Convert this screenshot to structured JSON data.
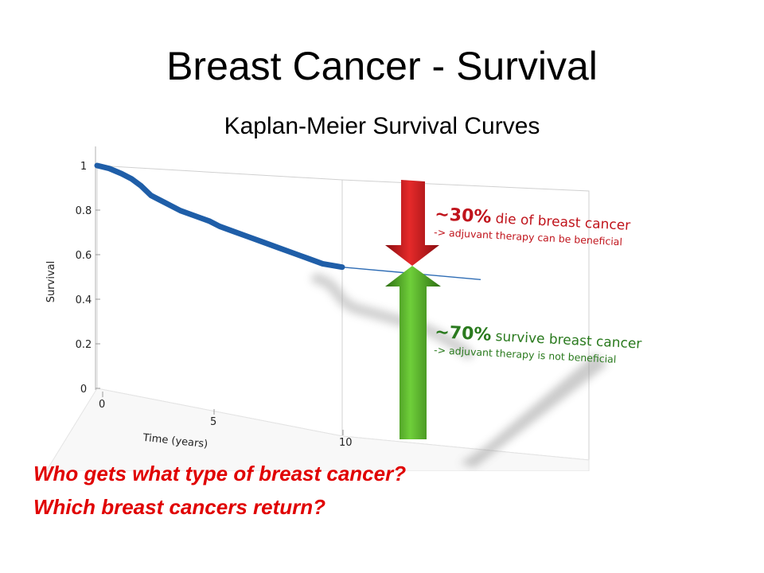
{
  "slide": {
    "title": "Breast Cancer - Survival",
    "subtitle": "Kaplan-Meier Survival Curves",
    "questions": [
      "Who gets what type of breast cancer?",
      "Which breast cancers return?"
    ]
  },
  "chart_data": {
    "type": "line",
    "xlabel": "Time (years)",
    "ylabel": "Survival",
    "x_ticks": [
      "0",
      "5",
      "10"
    ],
    "y_ticks": [
      "0",
      "0.2",
      "0.4",
      "0.6",
      "0.8",
      "1"
    ],
    "xlim": [
      0,
      10
    ],
    "ylim": [
      0,
      1
    ],
    "series": [
      {
        "color": "#1f5ea8",
        "x": [
          0,
          0.5,
          1.0,
          1.4,
          1.8,
          2.2,
          2.8,
          3.4,
          4.0,
          4.6,
          5.0,
          5.6,
          6.2,
          6.8,
          7.4,
          8.0,
          8.6,
          9.2,
          10
        ],
        "y": [
          1.0,
          0.99,
          0.97,
          0.95,
          0.92,
          0.88,
          0.85,
          0.82,
          0.8,
          0.78,
          0.76,
          0.74,
          0.72,
          0.7,
          0.68,
          0.66,
          0.64,
          0.62,
          0.61
        ]
      }
    ],
    "projection_line": {
      "y_start": 0.61,
      "y_end": 0.59,
      "color": "#2f6db5"
    },
    "annotations": [
      {
        "percent": "~30%",
        "text": " die of breast cancer",
        "note": "-> adjuvant therapy can be beneficial",
        "color": "#c0141c"
      },
      {
        "percent": "~70%",
        "text": " survive breast cancer",
        "note": "-> adjuvant therapy is not beneficial",
        "color": "#2a7a1e"
      }
    ]
  }
}
